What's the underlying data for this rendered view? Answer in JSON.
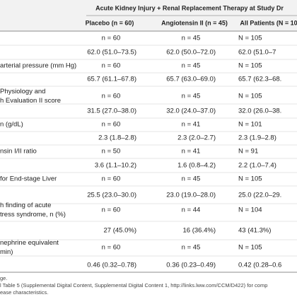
{
  "table": {
    "group_header": "Acute Kidney Injury + Renal Replacement Therapy at Study Dr",
    "columns": [
      "Placebo (n = 60)",
      "Angiotensin II (n = 45)",
      "All Patients (N = 10"
    ],
    "rows": [
      {
        "label": [],
        "cells": [
          "n = 60",
          "n = 45",
          "N = 105"
        ]
      },
      {
        "label": [],
        "cells": [
          "62.0 (51.0–73.5)",
          "62.0 (50.0–72.0)",
          "62.0 (51.0–7"
        ]
      },
      {
        "label": [
          "arterial pressure (mm Hg)"
        ],
        "cells": [
          "n = 60",
          "n = 45",
          "N = 105"
        ]
      },
      {
        "label": [],
        "cells": [
          "65.7 (61.1–67.8)",
          "65.7 (63.0–69.0)",
          "65.7 (62.3–68."
        ]
      },
      {
        "label": [
          "Physiology and",
          "h Evaluation II score"
        ],
        "cells": [
          "n = 60",
          "n = 45",
          "N = 105"
        ]
      },
      {
        "label": [],
        "cells": [
          "31.5 (27.0–38.0)",
          "32.0 (24.0–37.0)",
          "32.0 (26.0–38."
        ]
      },
      {
        "label": [
          "n (g/dL)"
        ],
        "cells": [
          "n = 60",
          "n = 41",
          "N = 101"
        ]
      },
      {
        "label": [],
        "cells": [
          "2.3 (1.8–2.8)",
          "2.3 (2.0–2.7)",
          "2.3 (1.9–2.8)"
        ]
      },
      {
        "label": [
          "nsin I/II ratio"
        ],
        "cells": [
          "n = 50",
          "n = 41",
          "N = 91"
        ]
      },
      {
        "label": [],
        "cells": [
          "3.6 (1.1–10.2)",
          "1.6 (0.8–4.2)",
          "2.2 (1.0–7.4)"
        ]
      },
      {
        "label": [
          "for End-stage Liver"
        ],
        "cells": [
          "n = 60",
          "n = 45",
          "N = 105"
        ]
      },
      {
        "label": [],
        "cells": [
          "25.5 (23.0–30.0)",
          "23.0 (19.0–28.0)",
          "25.0 (22.0–29."
        ]
      },
      {
        "label": [
          "h finding of acute",
          "tress syndrome, n (%)"
        ],
        "cells": [
          "n = 60",
          "n = 44",
          "N = 104"
        ]
      },
      {
        "label": [],
        "cells": [
          "27 (45.0%)",
          "16 (36.4%)",
          "43 (41.3%)"
        ]
      },
      {
        "label": [
          "nephrine equivalent",
          "min)"
        ],
        "cells": [
          "n = 60",
          "n = 45",
          "N = 105"
        ]
      },
      {
        "label": [],
        "cells": [
          "0.46 (0.32–0.78)",
          "0.36 (0.23–0.49)",
          "0.42 (0.28–0.6"
        ]
      }
    ]
  },
  "footnotes": [
    "ge.",
    "l Table 5 (Supplemental Digital Content, Supplemental Digital Content 1, http://links.lww.com/CCM/D422) for comp",
    "ease characteristics."
  ]
}
